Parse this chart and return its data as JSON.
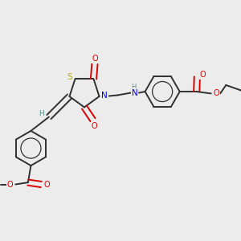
{
  "background_color": "#ececec",
  "atom_colors": {
    "C": "#303030",
    "H": "#5a9090",
    "N": "#0000ee",
    "O": "#dd0000",
    "S": "#bbaa00"
  },
  "bond_color": "#303030",
  "figsize": [
    3.0,
    3.0
  ],
  "dpi": 100
}
